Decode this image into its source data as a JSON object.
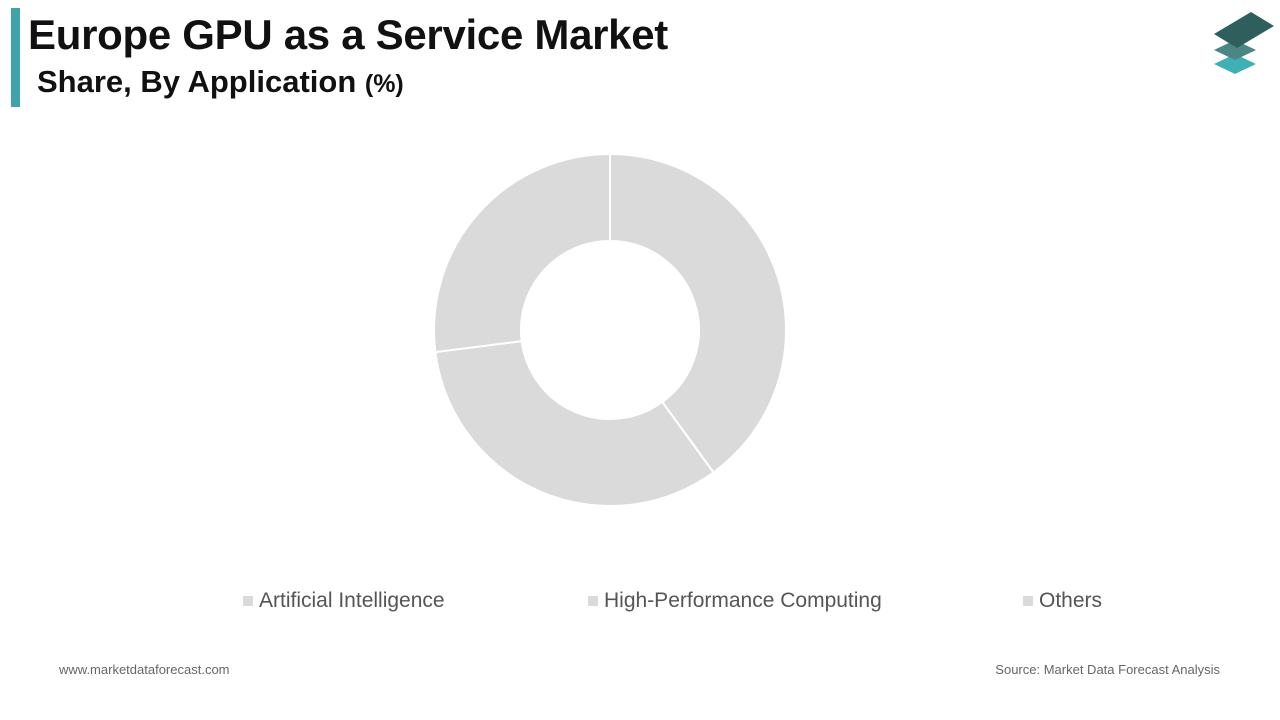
{
  "header": {
    "title": "Europe GPU as a Service Market",
    "subtitle": "Share, By Application",
    "subtitle_unit": "(%)"
  },
  "brand": {
    "logo_icon": "stacked-layers-icon",
    "accent_color": "#3fa3ab",
    "logo_colors": [
      "#2f5f5c",
      "#4a8784",
      "#3fb1b4"
    ]
  },
  "chart_data": {
    "type": "pie",
    "donut": true,
    "categories": [
      "Artificial Intelligence",
      "High-Performance Computing",
      "Others"
    ],
    "values": [
      40,
      33,
      27
    ],
    "colors": [
      "#dadada",
      "#dadada",
      "#dadada"
    ],
    "legend_position": "bottom"
  },
  "footer": {
    "website": "www.marketdataforecast.com",
    "source": "Source: Market Data Forecast Analysis"
  }
}
